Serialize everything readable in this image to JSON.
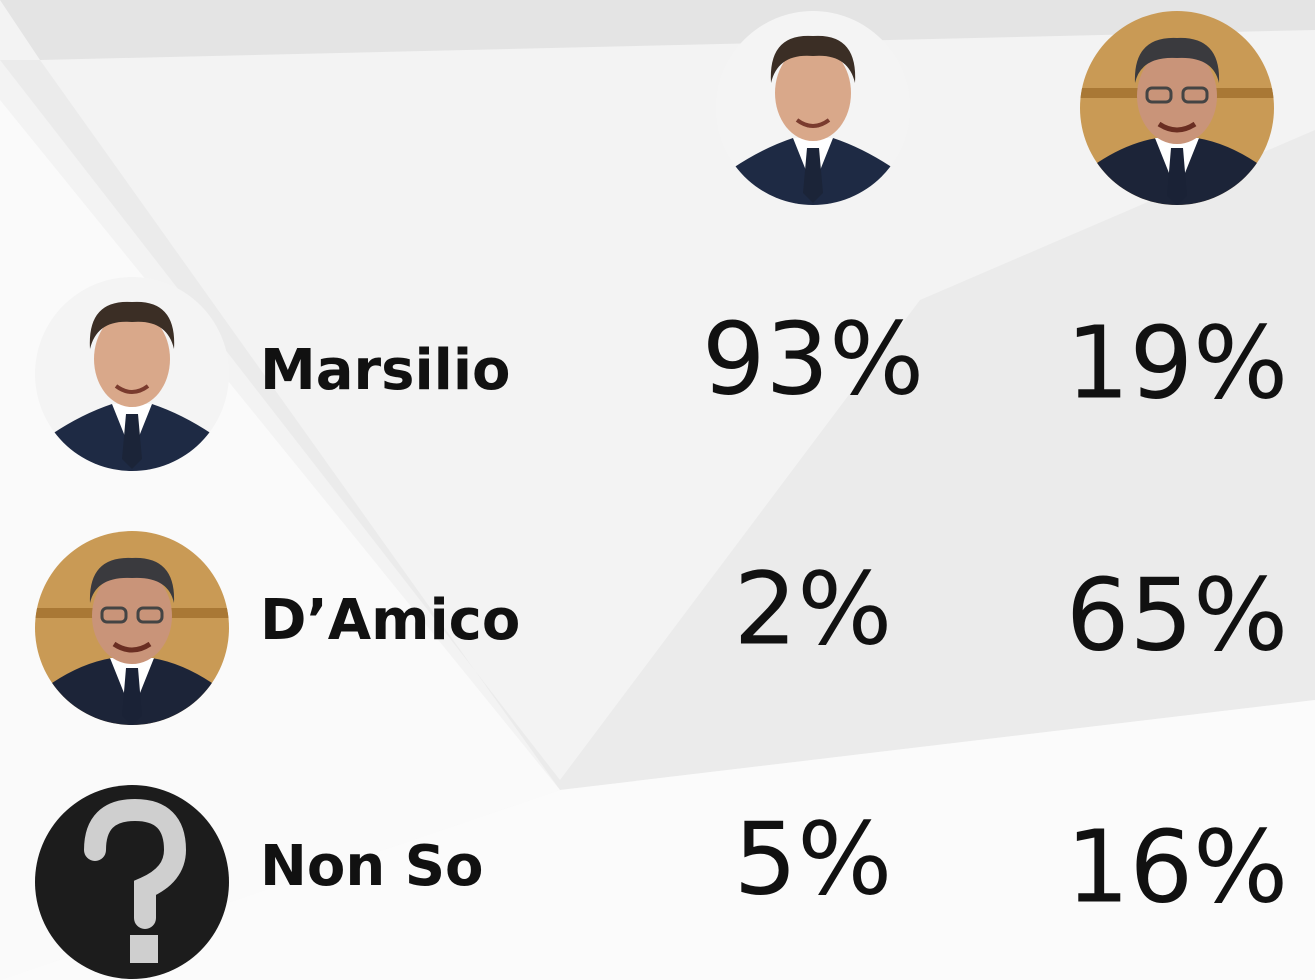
{
  "table": {
    "rows": [
      {
        "label": "Marsilio",
        "cells": [
          "93%",
          "19%"
        ]
      },
      {
        "label": "D’Amico",
        "cells": [
          "2%",
          "65%"
        ]
      },
      {
        "label": "Non So",
        "cells": [
          "5%",
          "16%"
        ]
      }
    ]
  }
}
